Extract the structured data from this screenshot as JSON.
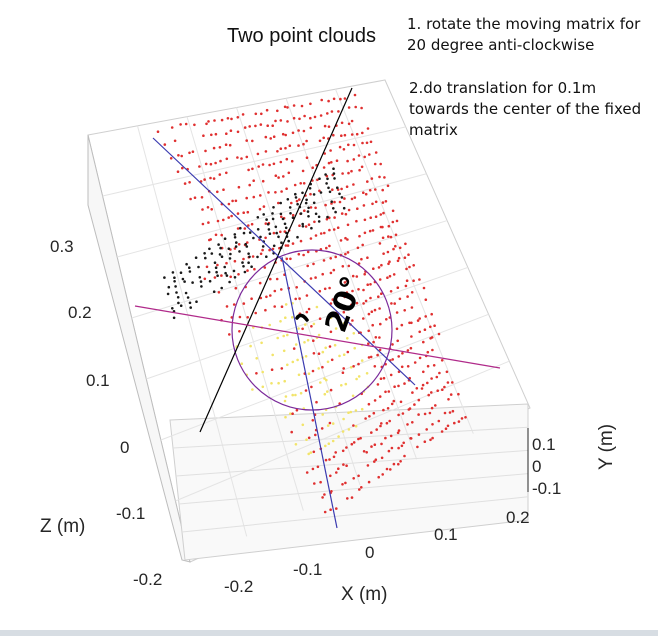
{
  "chart_data": {
    "type": "scatter",
    "dimensions": 3,
    "title": "Two point clouds",
    "xlabel": "X (m)",
    "ylabel": "Y (m)",
    "zlabel": "Z (m)",
    "x_ticks": [
      "-0.2",
      "-0.1",
      "0",
      "0.1",
      "0.2"
    ],
    "y_ticks": [
      "0.1",
      "0",
      "-0.1"
    ],
    "z_ticks": [
      "0.3",
      "0.2",
      "0.1",
      "0",
      "-0.1",
      "-0.2"
    ],
    "xlim": [
      -0.25,
      0.25
    ],
    "ylim": [
      -0.1,
      0.1
    ],
    "zlim": [
      -0.2,
      0.35
    ],
    "grid": true,
    "series": [
      {
        "color": "#e03030",
        "marker": "dot"
      },
      {
        "color": "#1a1a1a",
        "marker": "dot"
      },
      {
        "color": "#f2e46a",
        "marker": "dot"
      }
    ],
    "annotations": {
      "note1": "1. rotate the moving matrix for 20 degree anti-clockwise",
      "note2": "2.do translation for 0.1m towards the center of the fixed matrix",
      "handwritten_label": "20°"
    },
    "overlay_colors": {
      "circle": "#7b2a9a",
      "line_black": "#000000",
      "line_blue": "#3b3bb0",
      "line_magenta": "#b02a8a"
    }
  }
}
